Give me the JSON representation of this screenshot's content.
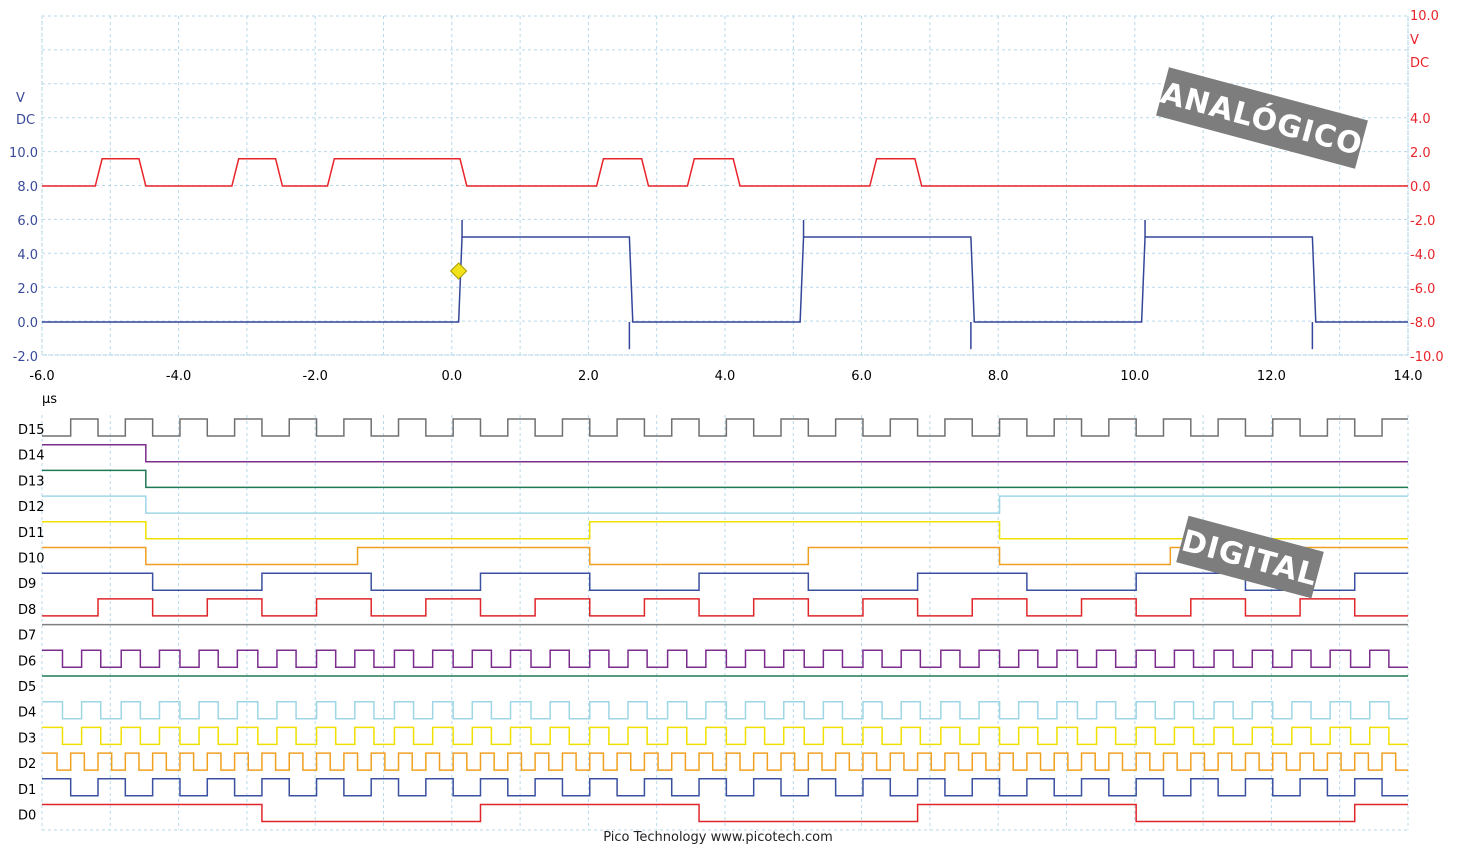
{
  "colors": {
    "left_axis": "#3a4a9a",
    "right_axis": "#e8242a",
    "grid": "#9bc8e0",
    "badge_bg": "#7d7d7d"
  },
  "left_axis": {
    "unit": "V",
    "coupling": "DC",
    "ticks": [
      "10.0",
      "8.0",
      "6.0",
      "4.0",
      "2.0",
      "0.0",
      "-2.0"
    ]
  },
  "right_axis": {
    "range_value": "10.0",
    "unit": "V",
    "coupling": "DC",
    "ticks": [
      "4.0",
      "2.0",
      "0.0",
      "-2.0",
      "-4.0",
      "-6.0",
      "-8.0",
      "-10.0"
    ]
  },
  "x_axis": {
    "ticks": [
      "-6.0",
      "-4.0",
      "-2.0",
      "0.0",
      "2.0",
      "4.0",
      "6.0",
      "8.0",
      "10.0",
      "12.0",
      "14.0"
    ],
    "unit": "µs"
  },
  "badges": {
    "analog": "ANALÓGICO",
    "digital": "DIGITAL"
  },
  "footer": "Pico Technology   www.picotech.com",
  "channels": [
    "D15",
    "D14",
    "D13",
    "D12",
    "D11",
    "D10",
    "D9",
    "D8",
    "D7",
    "D6",
    "D5",
    "D4",
    "D3",
    "D2",
    "D1",
    "D0"
  ],
  "chart_data": {
    "type": "line",
    "x_unit": "µs",
    "xlim": [
      -6.0,
      14.0
    ],
    "series": [
      {
        "axis": "left",
        "ylim": [
          -2.0,
          10.0
        ],
        "x": [
          -6.0,
          -5.22,
          -5.12,
          -4.58,
          -4.48,
          -3.22,
          -3.12,
          -2.58,
          -2.48,
          -1.82,
          -1.72,
          0.12,
          0.22,
          2.12,
          2.22,
          2.78,
          2.88,
          3.45,
          3.55,
          4.12,
          4.22,
          6.12,
          6.22,
          6.78,
          6.88,
          14.0
        ],
        "y": [
          8.0,
          8.0,
          9.6,
          9.6,
          8.0,
          8.0,
          9.6,
          9.6,
          8.0,
          8.0,
          9.6,
          9.6,
          8.0,
          8.0,
          9.6,
          9.6,
          8.0,
          8.0,
          9.6,
          9.6,
          8.0,
          8.0,
          9.6,
          9.6,
          8.0,
          8.0
        ]
      },
      {
        "axis": "left",
        "ylim": [
          -2.0,
          10.0
        ],
        "x": [
          -6.0,
          0.1,
          0.15,
          2.6,
          2.65,
          5.1,
          5.15,
          7.6,
          7.65,
          10.1,
          10.15,
          12.6,
          12.65,
          14.0
        ],
        "y": [
          0.0,
          0.0,
          5.0,
          5.0,
          0.0,
          0.0,
          5.0,
          5.0,
          0.0,
          0.0,
          5.0,
          5.0,
          0.0,
          0.0
        ]
      }
    ],
    "trigger": {
      "x": 0.1,
      "y": 3.0
    }
  }
}
